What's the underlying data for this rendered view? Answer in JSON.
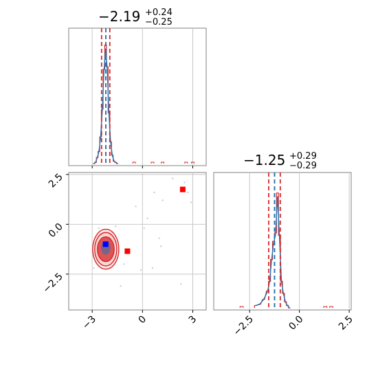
{
  "chart_data": [
    {
      "type": "histogram",
      "panel": "top-left",
      "title_main": "−2.19",
      "title_sup": "+0.24",
      "title_sub": "−0.25",
      "xlim": [
        -4.4,
        3.8
      ],
      "quantiles_red": [
        -2.44,
        -2.19,
        -1.95
      ],
      "quantile_blue": -2.19,
      "bins": [
        {
          "x": -2.9,
          "h": 0.0
        },
        {
          "x": -2.8,
          "h": 0.01
        },
        {
          "x": -2.7,
          "h": 0.05
        },
        {
          "x": -2.6,
          "h": 0.1
        },
        {
          "x": -2.5,
          "h": 0.22
        },
        {
          "x": -2.4,
          "h": 0.45
        },
        {
          "x": -2.3,
          "h": 0.78
        },
        {
          "x": -2.2,
          "h": 0.98
        },
        {
          "x": -2.1,
          "h": 0.8
        },
        {
          "x": -2.0,
          "h": 0.42
        },
        {
          "x": -1.9,
          "h": 0.18
        },
        {
          "x": -1.8,
          "h": 0.07
        },
        {
          "x": -1.7,
          "h": 0.02
        },
        {
          "x": -1.6,
          "h": 0.01
        },
        {
          "x": -1.5,
          "h": 0.0
        }
      ],
      "tail_bins": [
        {
          "x": -0.5,
          "h": 0.01
        },
        {
          "x": 0.6,
          "h": 0.01
        },
        {
          "x": 1.2,
          "h": 0.01
        },
        {
          "x": 2.6,
          "h": 0.01
        },
        {
          "x": 3.0,
          "h": 0.01
        }
      ]
    },
    {
      "type": "scatter",
      "panel": "bottom-left",
      "xlim": [
        -4.4,
        3.8
      ],
      "ylim": [
        -4.3,
        2.6
      ],
      "xticks": [
        -3,
        0,
        3
      ],
      "xtick_labels": [
        "−3",
        "0",
        "3"
      ],
      "yticks": [
        2.5,
        0.0,
        -2.5
      ],
      "ytick_labels": [
        "2.5",
        "0.0",
        "−2.5"
      ],
      "contour_center": [
        -2.19,
        -1.25
      ],
      "contour_radii": [
        [
          0.5,
          0.62
        ],
        [
          0.66,
          0.84
        ],
        [
          0.78,
          1.0
        ]
      ],
      "blue_point": [
        -2.2,
        -1.0
      ],
      "red_points": [
        [
          -0.9,
          -1.35
        ],
        [
          2.4,
          1.75
        ]
      ],
      "scatter_points": [
        [
          -2.6,
          -0.2
        ],
        [
          -1.8,
          -0.4
        ],
        [
          -0.4,
          0.9
        ],
        [
          0.7,
          1.6
        ],
        [
          1.2,
          1.2
        ],
        [
          1.8,
          2.3
        ],
        [
          2.9,
          1.1
        ],
        [
          -0.1,
          -2.3
        ],
        [
          0.6,
          -2.2
        ],
        [
          1.1,
          -1.1
        ],
        [
          2.3,
          -3.0
        ],
        [
          -1.3,
          -3.1
        ],
        [
          -2.9,
          -2.2
        ],
        [
          -1.6,
          -0.1
        ],
        [
          0.1,
          -0.2
        ],
        [
          2.7,
          1.6
        ],
        [
          2.5,
          2.1
        ],
        [
          1.0,
          -0.7
        ],
        [
          -1.1,
          -2.0
        ],
        [
          0.3,
          0.3
        ]
      ]
    },
    {
      "type": "histogram",
      "panel": "bottom-right",
      "title_main": "−1.25",
      "title_sup": "+0.29",
      "title_sub": "−0.29",
      "xlim": [
        -4.3,
        2.6
      ],
      "xticks": [
        -2.5,
        0.0,
        2.5
      ],
      "xtick_labels": [
        "−2.5",
        "0.0",
        "2.5"
      ],
      "quantiles_red": [
        -1.54,
        -1.25,
        -0.96
      ],
      "quantile_blue": -1.25,
      "bins": [
        {
          "x": -2.2,
          "h": 0.02
        },
        {
          "x": -2.0,
          "h": 0.03
        },
        {
          "x": -1.8,
          "h": 0.07
        },
        {
          "x": -1.6,
          "h": 0.14
        },
        {
          "x": -1.5,
          "h": 0.22
        },
        {
          "x": -1.4,
          "h": 0.4
        },
        {
          "x": -1.3,
          "h": 0.55
        },
        {
          "x": -1.2,
          "h": 0.62
        },
        {
          "x": -1.1,
          "h": 0.95
        },
        {
          "x": -1.0,
          "h": 0.6
        },
        {
          "x": -0.9,
          "h": 0.22
        },
        {
          "x": -0.8,
          "h": 0.12
        },
        {
          "x": -0.7,
          "h": 0.05
        },
        {
          "x": -0.6,
          "h": 0.02
        },
        {
          "x": -0.5,
          "h": 0.0
        }
      ],
      "tail_bins": [
        {
          "x": -2.9,
          "h": 0.01
        },
        {
          "x": 1.3,
          "h": 0.01
        },
        {
          "x": 1.6,
          "h": 0.01
        }
      ]
    }
  ],
  "colors": {
    "hist_red": "#d62728",
    "hist_blue": "#1f77b4",
    "grid": "#c8c8c8",
    "scatter": "#cccccc",
    "axes": "#808080"
  }
}
